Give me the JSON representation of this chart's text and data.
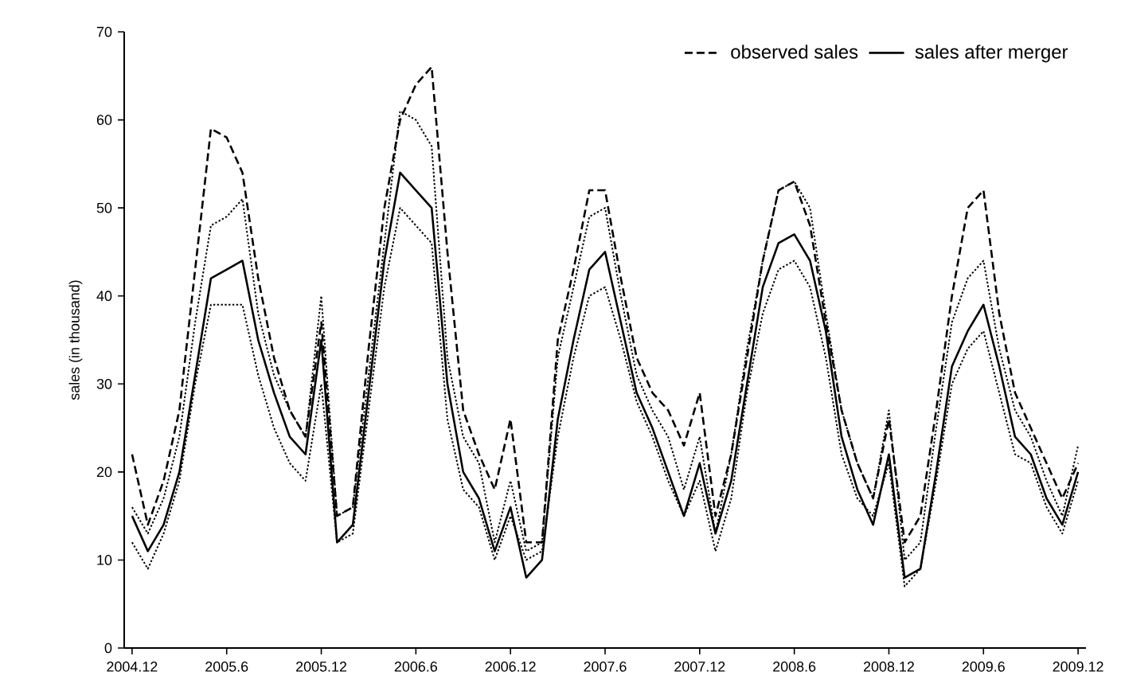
{
  "chart_data": {
    "type": "line",
    "ylabel": "sales (in thousand)",
    "categories": [
      "2004.12",
      null,
      null,
      null,
      null,
      null,
      "2005.6",
      null,
      null,
      null,
      null,
      null,
      "2005.12",
      null,
      null,
      null,
      null,
      null,
      "2006.6",
      null,
      null,
      null,
      null,
      null,
      "2006.12",
      null,
      null,
      null,
      null,
      null,
      "2007.6",
      null,
      null,
      null,
      null,
      null,
      "2007.12",
      null,
      null,
      null,
      null,
      null,
      "2008.6",
      null,
      null,
      null,
      null,
      null,
      "2008.12",
      null,
      null,
      null,
      null,
      null,
      "2009.6",
      null,
      null,
      null,
      null,
      null,
      "2009.12"
    ],
    "series": [
      {
        "name": "observed sales",
        "color": "#000000",
        "line_style": "dashed",
        "values": [
          22,
          14,
          19,
          27,
          43,
          59,
          58,
          54,
          42,
          33,
          27,
          24,
          37,
          15,
          16,
          34,
          50,
          60,
          64,
          66,
          45,
          27,
          22,
          18,
          26,
          12,
          12,
          35,
          43,
          52,
          52,
          42,
          33,
          29,
          27,
          23,
          29,
          15,
          22,
          33,
          44,
          52,
          53,
          48,
          37,
          27,
          21,
          17,
          26,
          12,
          15,
          27,
          40,
          50,
          52,
          38,
          29,
          25,
          21,
          17,
          21
        ]
      },
      {
        "name": "sales after merger",
        "color": "#000000",
        "line_style": "solid",
        "values": [
          15,
          11,
          14,
          20,
          31,
          42,
          43,
          44,
          35,
          29,
          24,
          22,
          35,
          12,
          14,
          29,
          44,
          54,
          52,
          50,
          30,
          20,
          17,
          11,
          16,
          8,
          10,
          26,
          35,
          43,
          45,
          37,
          29,
          25,
          20,
          15,
          21,
          13,
          19,
          30,
          41,
          46,
          47,
          44,
          36,
          24,
          18,
          14,
          22,
          8,
          9,
          20,
          32,
          36,
          39,
          32,
          24,
          22,
          17,
          14,
          20
        ]
      },
      {
        "color": "#000000",
        "line_style": "dotted",
        "values": [
          16,
          13,
          17,
          24,
          37,
          48,
          49,
          51,
          38,
          31,
          27,
          24,
          40,
          15,
          16,
          31,
          46,
          61,
          60,
          57,
          33,
          24,
          21,
          12,
          19,
          11,
          12,
          33,
          41,
          49,
          50,
          40,
          31,
          27,
          24,
          18,
          24,
          13,
          22,
          34,
          44,
          52,
          53,
          50,
          38,
          27,
          21,
          17,
          27,
          10,
          12,
          25,
          37,
          42,
          44,
          34,
          27,
          24,
          19,
          15,
          23
        ]
      },
      {
        "color": "#000000",
        "line_style": "dotted",
        "values": [
          12,
          9,
          13,
          19,
          30,
          39,
          39,
          39,
          31,
          25,
          21,
          19,
          30,
          12,
          13,
          27,
          41,
          50,
          48,
          46,
          26,
          18,
          16,
          10,
          15,
          10,
          11,
          24,
          33,
          40,
          41,
          35,
          28,
          24,
          19,
          15,
          19,
          11,
          17,
          29,
          38,
          43,
          44,
          41,
          33,
          22,
          17,
          15,
          21,
          7,
          9,
          19,
          30,
          34,
          36,
          29,
          22,
          21,
          16,
          13,
          19
        ]
      }
    ],
    "ylim": [
      0,
      70
    ],
    "yticks": [
      0,
      10,
      20,
      30,
      40,
      50,
      60,
      70
    ],
    "legend": "top right"
  }
}
